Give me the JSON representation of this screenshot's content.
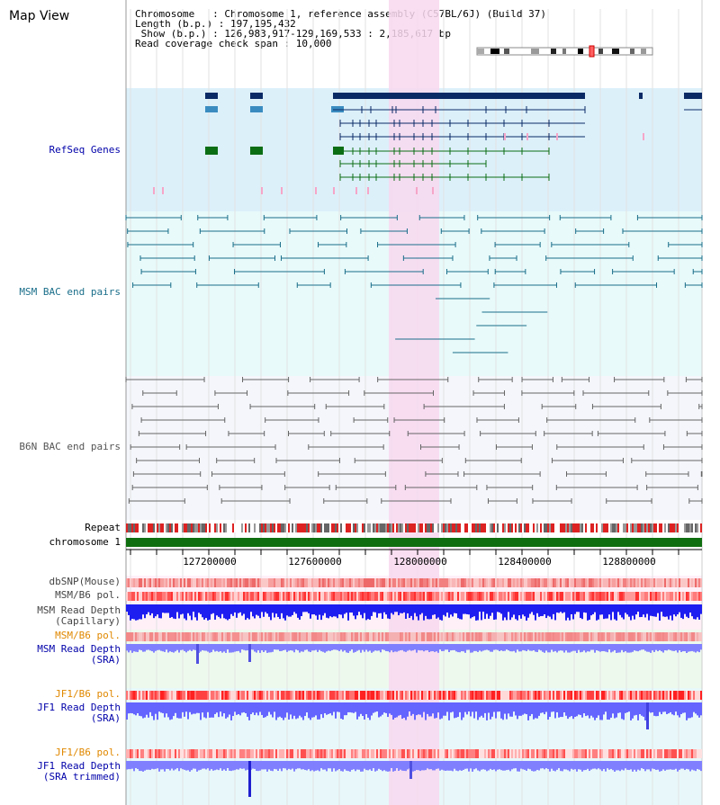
{
  "view": {
    "title": "Map View",
    "info_lines": [
      "Chromosome   : Chromosome 1, reference assembly (C57BL/6J) (Build 37)",
      "Length (b.p.) : 197,195,432",
      " Show (b.p.) : 126,983,917-129,169,533 : 2,185,617 bp",
      "Read coverage check span : 10,000"
    ]
  },
  "tracks": {
    "refseq": "RefSeq Genes",
    "msm_bac": "MSM BAC end pairs",
    "b6n_bac": "B6N BAC end pairs",
    "repeat": "Repeat",
    "chromosome": "chromosome 1",
    "dbsnp": "dbSNP(Mouse)",
    "msm_b6_pol": "MSM/B6 pol.",
    "msm_depth_cap_1": "MSM Read Depth",
    "msm_depth_cap_2": "(Capillary)",
    "msm_b6_pol_2": "MSM/B6 pol.",
    "msm_depth_sra_1": "MSM Read Depth",
    "msm_depth_sra_2": "(SRA)",
    "jf1_b6_pol": "JF1/B6 pol.",
    "jf1_depth_sra_1": "JF1 Read Depth",
    "jf1_depth_sra_2": "(SRA)",
    "jf1_b6_pol_2": "JF1/B6 pol.",
    "jf1_depth_trim_1": "JF1 Read Depth",
    "jf1_depth_trim_2": "(SRA trimmed)"
  },
  "ruler": {
    "ticks": [
      "127200000",
      "127600000",
      "128000000",
      "128400000",
      "128800000"
    ]
  },
  "colors": {
    "refseq_bg": "#dcf0fa",
    "msm_bg": "#e8fafa",
    "b6n_bg": "#f4f6fb",
    "highlight": "#f8d8ee",
    "gene_navy": "#0a2a66",
    "gene_green": "#0b6e14",
    "msm_pair": "#1a6e8a",
    "b6n_pair": "#666666",
    "chromosome_green": "#0f6e0f",
    "depth_blue": "#1e1ef0",
    "depth_light": "#8080ff",
    "orange_label": "#e08800"
  }
}
